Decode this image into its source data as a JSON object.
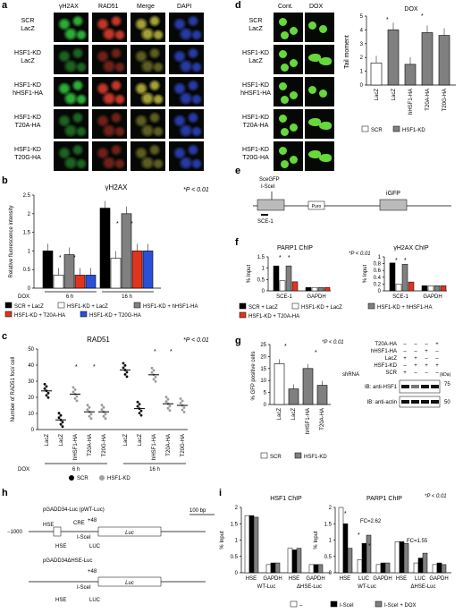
{
  "panels": {
    "a": {
      "label": "a",
      "columns": [
        "γH2AX",
        "RAD51",
        "Merge",
        "DAPI"
      ],
      "rows": [
        {
          "l1": "SCR",
          "l2": "LacZ"
        },
        {
          "l1": "HSF1-KD",
          "l2": "LacZ"
        },
        {
          "l1": "HSF1-KD",
          "l2": "hHSF1-HA"
        },
        {
          "l1": "HSF1-KD",
          "l2": "T20A-HA"
        },
        {
          "l1": "HSF1-KD",
          "l2": "T20G-HA"
        }
      ],
      "colors": {
        "gh2ax": "#2fbf3a",
        "rad51": "#d83a2c",
        "merge": "#b4b03a",
        "dapi": "#2a3fb8"
      }
    },
    "b": {
      "label": "b",
      "title": "γH2AX",
      "pvalue": "*P < 0.01",
      "ylabel": "Relative fluorescence intensity",
      "yticks": [
        "0",
        "0.5",
        "1",
        "1.5",
        "2",
        "2.5"
      ],
      "dox_label": "DOX",
      "groups": [
        "6 h",
        "16 h"
      ],
      "legend": [
        {
          "label": "SCR + LacZ",
          "color": "#000000"
        },
        {
          "label": "HSF1-KD + LacZ",
          "color": "#ffffff"
        },
        {
          "label": "HSF1-KD + hHSF1-HA",
          "color": "#808080"
        },
        {
          "label": "HSF1-KD + T20A-HA",
          "color": "#e0341f"
        },
        {
          "label": "HSF1-KD + T20G-HA",
          "color": "#2a4fd8"
        }
      ]
    },
    "c": {
      "label": "c",
      "title": "RAD51",
      "pvalue": "*P < 0.01",
      "ylabel": "Number of RAD51 foci/ cell",
      "yticks": [
        "0",
        "10",
        "20",
        "30",
        "40",
        "50"
      ],
      "xlabels": [
        "LacZ",
        "LacZ",
        "hHSF1-HA",
        "T20A-HA",
        "T20G-HA"
      ],
      "dox_label": "DOX",
      "groups": [
        "6 h",
        "16 h"
      ],
      "legend": [
        {
          "label": "SCR",
          "color": "#000000"
        },
        {
          "label": "HSF1-KD",
          "color": "#a0a0a0"
        }
      ]
    },
    "d": {
      "label": "d",
      "col_heads": [
        "Cont.",
        "DOX"
      ],
      "rows": [
        {
          "l1": "SCR",
          "l2": "LacZ"
        },
        {
          "l1": "HSF1-KD",
          "l2": "LacZ"
        },
        {
          "l1": "HSF1-KD",
          "l2": "hHSF1-HA"
        },
        {
          "l1": "HSF1-KD",
          "l2": "T20A-HA"
        },
        {
          "l1": "HSF1-KD",
          "l2": "T20G-HA"
        }
      ],
      "chart_title": "DOX",
      "ylabel": "Tail moment",
      "yticks": [
        "0",
        "1",
        "2",
        "3",
        "4",
        "5"
      ],
      "xlabels": [
        "LacZ",
        "LacZ",
        "hHSF1-HA",
        "T20A-HA",
        "T20G-HA"
      ],
      "legend": [
        {
          "label": "SCR",
          "color": "#ffffff"
        },
        {
          "label": "HSF1-KD",
          "color": "#808080"
        }
      ]
    },
    "e": {
      "label": "e",
      "sce_label1": "SceGFP",
      "sce_label2": "I-SceI",
      "puro": "Puro",
      "igfp": "iGFP",
      "primer": "SCE-1"
    },
    "f": {
      "label": "f",
      "title_left": "PARP1 ChIP",
      "title_right": "γH2AX ChIP",
      "pvalue": "*P < 0.01",
      "ylabel": "% Input",
      "left_yticks": [
        "0",
        "0.5",
        "1",
        "1.5"
      ],
      "right_yticks": [
        "0",
        "0.2",
        "0.4",
        "0.6",
        "0.8",
        "1"
      ],
      "xgroups": [
        "SCE-1",
        "GAPDH"
      ],
      "legend": [
        {
          "label": "SCR + LacZ",
          "color": "#000000"
        },
        {
          "label": "HSF1-KD + LacZ",
          "color": "#ffffff"
        },
        {
          "label": "HSF1-KD + hHSF1-HA",
          "color": "#808080"
        },
        {
          "label": "HSF1-KD + T20A-HA",
          "color": "#e0341f"
        }
      ]
    },
    "g": {
      "label": "g",
      "pvalue": "*P < 0.01",
      "ylabel": "% GFP positive cells",
      "yticks": [
        "0",
        "5",
        "10",
        "15",
        "20",
        "25"
      ],
      "xlabels": [
        "LacZ",
        "LacZ",
        "hHSF1-HA",
        "T20A-HA"
      ],
      "legend": [
        {
          "label": "SCR",
          "color": "#ffffff"
        },
        {
          "label": "HSF1-KD",
          "color": "#808080"
        }
      ],
      "blot_rows": [
        {
          "label": "T20A-HA",
          "marks": [
            "–",
            "–",
            "–",
            "+"
          ]
        },
        {
          "label": "hHSF1-HA",
          "marks": [
            "–",
            "–",
            "+",
            "–"
          ]
        },
        {
          "label": "LacZ",
          "marks": [
            "+",
            "+",
            "–",
            "–"
          ]
        },
        {
          "label": "HSF1-KD",
          "marks": [
            "–",
            "+",
            "+",
            "+"
          ]
        },
        {
          "label": "SCR",
          "marks": [
            "+",
            "–",
            "–",
            "–"
          ]
        }
      ],
      "shrna": "shRNA",
      "kda": "(kDa)",
      "ib1": "IB: anti-HSF1",
      "ib2": "IB: anti-actin",
      "mw1": "75",
      "mw2": "50"
    },
    "h": {
      "label": "h",
      "c1_title": "pGADD34-Luc (pWT-Luc)",
      "c2_title": "pGADD34ΔHSE-Luc",
      "cre": "CRE",
      "hse": "HSE",
      "isce": "I-SceI",
      "plus48": "+48",
      "minus1000": "−1000",
      "luc": "Luc",
      "bp": "100 bp",
      "luc_primer": "LUC"
    },
    "i": {
      "label": "i",
      "title_left": "HSF1 ChIP",
      "title_right": "PARP1 ChIP",
      "pvalue": "*P < 0.01",
      "ylabel": "% Input",
      "left_yticks": [
        "0",
        "0.5",
        "1",
        "1.5",
        "2"
      ],
      "right_yticks": [
        "0",
        "0.5",
        "1",
        "1.5",
        "2"
      ],
      "left_x": [
        "HSE",
        "GAPDH",
        "HSE",
        "GAPDH"
      ],
      "right_x": [
        "HSE",
        "LUC",
        "GAPDH",
        "HSE",
        "LUC",
        "GAPDH"
      ],
      "left_groups": [
        "WT-Luc",
        "ΔHSE-Luc"
      ],
      "right_groups": [
        "WT-Luc",
        "ΔHSE-Luc"
      ],
      "fc1": "FC=2.62",
      "fc2": "FC=1.55",
      "legend": [
        {
          "label": "–",
          "color": "#ffffff"
        },
        {
          "label": "I-SceI",
          "color": "#000000"
        },
        {
          "label": "I-SceI + DOX",
          "color": "#808080"
        }
      ]
    }
  },
  "chart_data": [
    {
      "type": "bar",
      "title": "γH2AX",
      "categories": [
        "6 h",
        "16 h"
      ],
      "ylabel": "Relative fluorescence intensity",
      "ylim": [
        0,
        2.5
      ],
      "series": [
        {
          "name": "SCR + LacZ",
          "values": [
            1.0,
            2.15
          ]
        },
        {
          "name": "HSF1-KD + LacZ",
          "values": [
            0.35,
            0.8
          ]
        },
        {
          "name": "HSF1-KD + hHSF1-HA",
          "values": [
            0.9,
            2.0
          ]
        },
        {
          "name": "HSF1-KD + T20A-HA",
          "values": [
            0.35,
            1.0
          ]
        },
        {
          "name": "HSF1-KD + T20G-HA",
          "values": [
            0.35,
            1.0
          ]
        }
      ]
    },
    {
      "type": "scatter",
      "title": "RAD51",
      "categories": [
        "LacZ",
        "LacZ",
        "hHSF1-HA",
        "T20A-HA",
        "T20G-HA"
      ],
      "ylabel": "Number of RAD51 foci/ cell",
      "ylim": [
        0,
        50
      ],
      "series": [
        {
          "name": "6 h",
          "values": [
            24,
            6,
            22,
            11,
            11
          ]
        },
        {
          "name": "16 h",
          "values": [
            37,
            13,
            34,
            16,
            15
          ]
        }
      ]
    },
    {
      "type": "bar",
      "title": "DOX",
      "categories": [
        "LacZ",
        "LacZ",
        "hHSF1-HA",
        "T20A-HA",
        "T20G-HA"
      ],
      "ylabel": "Tail moment",
      "ylim": [
        0,
        5
      ],
      "values": [
        1.6,
        4.0,
        1.5,
        3.8,
        3.6
      ]
    },
    {
      "type": "bar",
      "title": "PARP1 ChIP",
      "categories": [
        "SCE-1",
        "GAPDH"
      ],
      "ylabel": "% Input",
      "ylim": [
        0,
        1.5
      ],
      "series": [
        {
          "name": "SCR + LacZ",
          "values": [
            1.1,
            0.15
          ]
        },
        {
          "name": "HSF1-KD + LacZ",
          "values": [
            0.45,
            0.15
          ]
        },
        {
          "name": "HSF1-KD + hHSF1-HA",
          "values": [
            1.1,
            0.15
          ]
        },
        {
          "name": "HSF1-KD + T20A-HA",
          "values": [
            0.4,
            0.15
          ]
        }
      ]
    },
    {
      "type": "bar",
      "title": "γH2AX ChIP",
      "categories": [
        "SCE-1",
        "GAPDH"
      ],
      "ylabel": "% Input",
      "ylim": [
        0,
        1
      ],
      "series": [
        {
          "name": "SCR + LacZ",
          "values": [
            0.82,
            0.15
          ]
        },
        {
          "name": "HSF1-KD + LacZ",
          "values": [
            0.2,
            0.15
          ]
        },
        {
          "name": "HSF1-KD + hHSF1-HA",
          "values": [
            0.78,
            0.15
          ]
        },
        {
          "name": "HSF1-KD + T20A-HA",
          "values": [
            0.26,
            0.15
          ]
        }
      ]
    },
    {
      "type": "bar",
      "categories": [
        "LacZ",
        "LacZ",
        "hHSF1-HA",
        "T20A-HA"
      ],
      "ylabel": "% GFP positive cells",
      "ylim": [
        0,
        25
      ],
      "values": [
        17,
        6.5,
        15,
        8
      ]
    },
    {
      "type": "bar",
      "title": "HSF1 ChIP",
      "categories": [
        "HSE",
        "GAPDH",
        "HSE",
        "GAPDH"
      ],
      "ylabel": "% Input",
      "ylim": [
        0,
        2
      ],
      "series": [
        {
          "name": "–",
          "values": [
            1.75,
            0.25,
            0.75,
            0.25
          ]
        },
        {
          "name": "I-SceI",
          "values": [
            1.75,
            0.3,
            0.7,
            0.25
          ]
        },
        {
          "name": "I-SceI + DOX",
          "values": [
            1.7,
            0.3,
            0.75,
            0.25
          ]
        }
      ]
    },
    {
      "type": "bar",
      "title": "PARP1 ChIP",
      "categories": [
        "HSE",
        "LUC",
        "GAPDH",
        "HSE",
        "LUC",
        "GAPDH"
      ],
      "ylabel": "% Input",
      "ylim": [
        0,
        2
      ],
      "series": [
        {
          "name": "–",
          "values": [
            2.0,
            0.4,
            0.25,
            0.95,
            0.3,
            0.25
          ]
        },
        {
          "name": "I-SceI",
          "values": [
            1.5,
            0.9,
            0.3,
            0.95,
            0.45,
            0.3
          ]
        },
        {
          "name": "I-SceI + DOX",
          "values": [
            0.75,
            1.15,
            0.3,
            0.9,
            0.6,
            0.25
          ]
        }
      ]
    }
  ]
}
